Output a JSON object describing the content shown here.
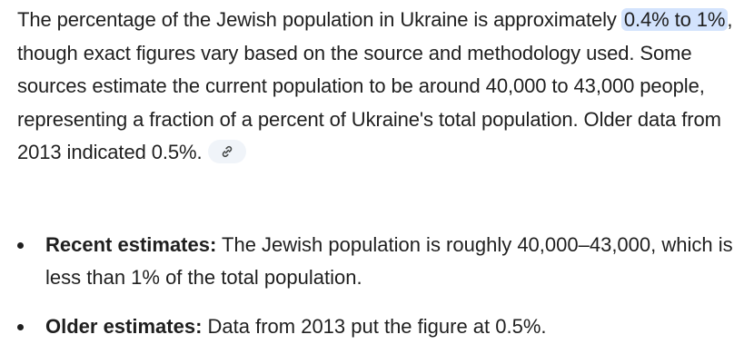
{
  "paragraph": {
    "intro": "The percentage of the Jewish population in Ukraine is approximately ",
    "highlight": "0.4% to 1%",
    "rest": ", though exact figures vary based on the source and methodology used. Some sources estimate the current population to be around 40,000 to 43,000 people, representing a fraction of a percent of Ukraine's total population. Older data from 2013 indicated 0.5%.",
    "source_icon": "link-icon"
  },
  "bullets": [
    {
      "label": "Recent estimates:",
      "text": " The Jewish population is roughly 40,000–43,000, which is less than 1% of the total population."
    },
    {
      "label": "Older estimates:",
      "text": " Data from 2013 put the figure at 0.5%."
    }
  ],
  "colors": {
    "highlight_bg": "#d3e3fd",
    "chip_bg": "#f0f4f9",
    "text": "#1f1f1f"
  }
}
